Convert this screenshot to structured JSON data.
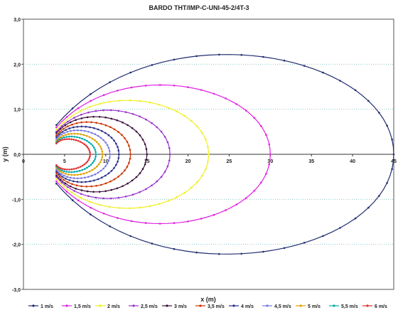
{
  "chart_data": {
    "type": "line",
    "title": "BARDO THT/IMP-C-UNI-45-2/4T-3",
    "xlabel": "x (m)",
    "ylabel": "y (m)",
    "xlim": [
      0,
      45
    ],
    "ylim": [
      -3,
      3
    ],
    "xticks": [
      "0",
      "5",
      "10",
      "15",
      "20",
      "25",
      "30",
      "35",
      "40",
      "45"
    ],
    "yticks": [
      "-3,0",
      "-2,0",
      "-1,0",
      "0,0",
      "1,0",
      "2,0",
      "3,0"
    ],
    "grid": "horizontal dotted",
    "legend_position": "bottom",
    "series": [
      {
        "name": "1 m/s",
        "color": "#1f2b6e",
        "values": {
          "x_start": 4,
          "x_end": 45.0,
          "x_peak": 26.5,
          "y_peak": 2.5,
          "y_start": 0.65
        }
      },
      {
        "name": "1,5 m/s",
        "color": "#e020e0",
        "values": {
          "x_start": 4,
          "x_end": 30.0,
          "x_peak": 18.5,
          "y_peak": 1.7,
          "y_start": 0.6
        }
      },
      {
        "name": "2 m/s",
        "color": "#f0f020",
        "values": {
          "x_start": 4,
          "x_end": 22.5,
          "x_peak": 14.2,
          "y_peak": 1.3,
          "y_start": 0.55
        }
      },
      {
        "name": "2,5 m/s",
        "color": "#9933cc",
        "values": {
          "x_start": 4,
          "x_end": 17.8,
          "x_peak": 11.5,
          "y_peak": 1.05,
          "y_start": 0.5
        }
      },
      {
        "name": "3 m/s",
        "color": "#3a0f3a",
        "values": {
          "x_start": 4,
          "x_end": 15.0,
          "x_peak": 9.8,
          "y_peak": 0.88,
          "y_start": 0.47
        }
      },
      {
        "name": "3,5 m/s",
        "color": "#cc3300",
        "values": {
          "x_start": 4,
          "x_end": 13.0,
          "x_peak": 8.6,
          "y_peak": 0.75,
          "y_start": 0.42
        }
      },
      {
        "name": "4 m/s",
        "color": "#2a2f8a",
        "values": {
          "x_start": 4,
          "x_end": 11.6,
          "x_peak": 7.8,
          "y_peak": 0.64,
          "y_start": 0.38
        }
      },
      {
        "name": "4,5 m/s",
        "color": "#7a7ae0",
        "values": {
          "x_start": 4,
          "x_end": 10.5,
          "x_peak": 7.1,
          "y_peak": 0.55,
          "y_start": 0.34
        }
      },
      {
        "name": "5 m/s",
        "color": "#e0a000",
        "values": {
          "x_start": 4,
          "x_end": 9.6,
          "x_peak": 6.6,
          "y_peak": 0.47,
          "y_start": 0.3
        }
      },
      {
        "name": "5,5 m/s",
        "color": "#00aaaa",
        "values": {
          "x_start": 4,
          "x_end": 8.8,
          "x_peak": 6.1,
          "y_peak": 0.4,
          "y_start": 0.27
        }
      },
      {
        "name": "6 m/s",
        "color": "#e03030",
        "values": {
          "x_start": 4,
          "x_end": 8.1,
          "x_peak": 5.7,
          "y_peak": 0.34,
          "y_start": 0.24
        }
      }
    ]
  }
}
